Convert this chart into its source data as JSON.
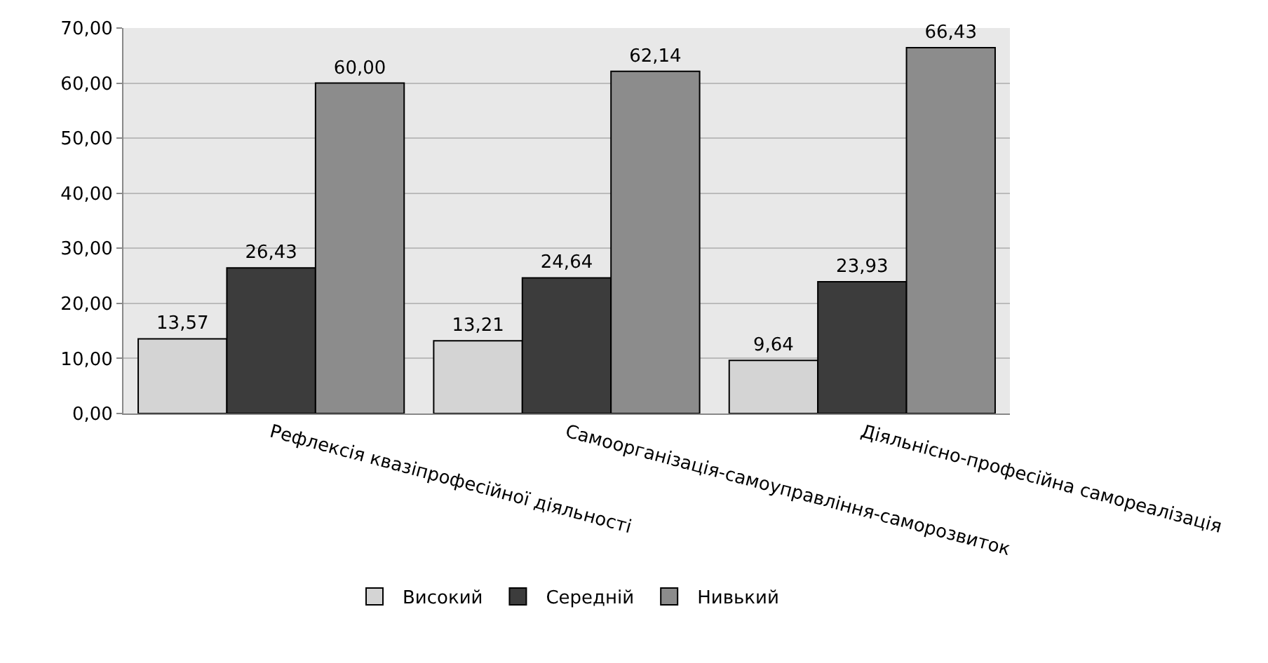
{
  "chart_data": {
    "type": "bar",
    "categories": [
      "Рефлексія квазіпрофесійної діяльності",
      "Самоорганізація-самоуправління-саморозвиток",
      "Діяльнісно-професійна самореалізація"
    ],
    "series": [
      {
        "name": "Високий",
        "color": "#d4d4d4",
        "values": [
          13.57,
          13.21,
          9.64
        ],
        "value_labels": [
          "13,57",
          "13,21",
          "9,64"
        ]
      },
      {
        "name": "Середній",
        "color": "#3c3c3c",
        "values": [
          26.43,
          24.64,
          23.93
        ],
        "value_labels": [
          "26,43",
          "24,64",
          "23,93"
        ]
      },
      {
        "name": "Нивький",
        "color": "#8c8c8c",
        "values": [
          60.0,
          62.14,
          66.43
        ],
        "value_labels": [
          "60,00",
          "62,14",
          "66,43"
        ]
      }
    ],
    "ylim": [
      0,
      70
    ],
    "yticks": [
      {
        "value": 0,
        "label": "0,00"
      },
      {
        "value": 10,
        "label": "10,00"
      },
      {
        "value": 20,
        "label": "20,00"
      },
      {
        "value": 30,
        "label": "30,00"
      },
      {
        "value": 40,
        "label": "40,00"
      },
      {
        "value": 50,
        "label": "50,00"
      },
      {
        "value": 60,
        "label": "60,00"
      },
      {
        "value": 70,
        "label": "70,00"
      }
    ],
    "grid": "y",
    "legend": "bottom"
  }
}
